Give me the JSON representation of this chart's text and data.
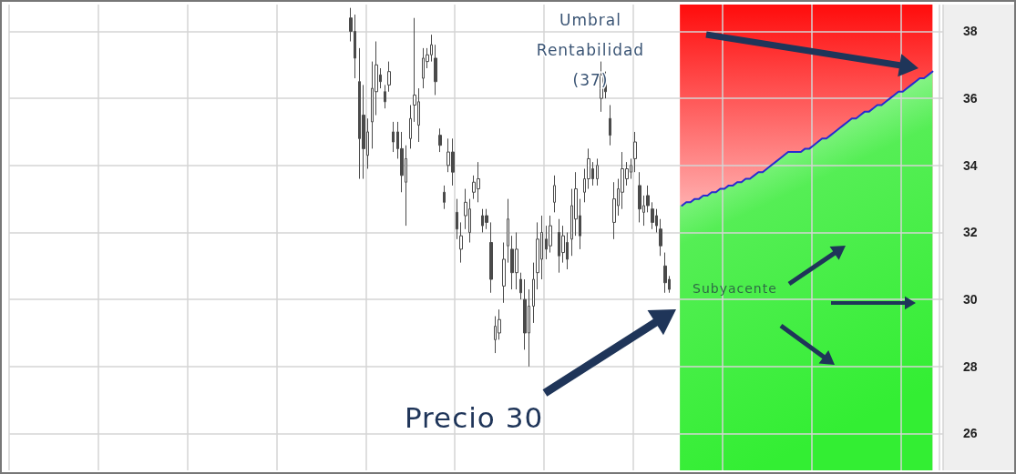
{
  "chart_data": {
    "type": "candlestick",
    "categories": [
      null,
      null,
      null,
      null,
      null,
      null,
      null,
      null,
      null,
      null,
      null,
      null,
      null,
      null,
      null,
      null,
      null,
      null,
      null,
      null,
      null,
      null,
      null,
      null,
      null,
      null,
      null,
      null,
      null,
      null,
      null,
      null,
      null,
      null,
      null,
      null,
      null,
      null,
      null,
      null,
      null,
      null,
      null,
      null,
      null,
      null,
      null,
      null,
      null,
      null,
      null,
      null,
      null,
      null,
      null,
      null,
      null,
      null,
      null,
      null,
      null,
      null,
      null,
      null,
      null,
      null,
      null,
      null,
      null,
      null,
      null,
      null,
      null,
      null,
      null,
      null,
      null,
      null,
      null,
      null,
      null,
      null,
      null,
      null,
      null,
      null,
      null,
      null,
      null,
      null,
      null,
      null,
      null,
      null,
      null,
      null,
      null,
      null,
      null,
      null,
      null,
      null,
      null,
      null,
      null,
      null,
      null,
      null,
      null,
      null,
      null,
      null,
      null,
      null,
      null,
      null,
      null,
      null,
      null,
      null,
      null,
      null,
      null,
      null,
      null,
      null,
      null,
      null,
      null,
      null,
      null,
      null,
      null,
      null,
      null,
      null,
      null,
      null,
      null,
      null,
      null,
      null,
      null,
      null,
      null,
      null,
      null,
      null,
      null,
      null,
      null,
      null,
      null,
      null,
      null,
      null,
      null,
      null,
      null,
      null,
      null,
      null,
      null,
      null,
      null,
      null,
      null,
      null,
      null,
      null,
      null,
      null,
      null,
      null,
      null,
      null,
      null,
      null,
      null,
      null,
      null,
      null,
      null,
      null,
      null,
      null,
      null,
      null,
      null,
      null,
      null,
      null,
      null,
      null,
      null,
      null,
      null,
      null,
      null,
      null,
      null,
      null,
      null,
      null,
      null,
      null,
      null,
      null,
      null,
      null,
      null,
      null,
      null,
      null,
      null,
      null,
      null,
      null,
      null,
      null
    ],
    "series": [
      {
        "color": "#4a4a4a",
        "ohlc": [
          null,
          null,
          null,
          null,
          null,
          null,
          null,
          null,
          null,
          null,
          null,
          null,
          null,
          null,
          null,
          null,
          null,
          null,
          null,
          null,
          null,
          null,
          null,
          null,
          null,
          null,
          null,
          null,
          null,
          null,
          null,
          null,
          null,
          null,
          null,
          null,
          null,
          null,
          null,
          null,
          null,
          null,
          null,
          null,
          null,
          null,
          null,
          null,
          null,
          null,
          null,
          null,
          null,
          null,
          null,
          null,
          null,
          null,
          null,
          null,
          null,
          null,
          null,
          null,
          null,
          null,
          null,
          null,
          null,
          null,
          null,
          null,
          null,
          null,
          null,
          null,
          null,
          null,
          null,
          null,
          [
            38.4,
            38.7,
            37.7,
            38.0
          ],
          [
            38.0,
            38.5,
            36.6,
            37.2
          ],
          [
            36.5,
            37.5,
            33.6,
            34.8
          ],
          [
            35.5,
            36.4,
            33.6,
            34.5
          ],
          [
            34.3,
            35.4,
            33.9,
            35.0
          ],
          [
            35.3,
            37.1,
            34.5,
            36.3
          ],
          [
            36.2,
            37.7,
            35.5,
            37.0
          ],
          [
            36.7,
            36.9,
            36.3,
            36.5
          ],
          [
            36.2,
            36.4,
            35.7,
            35.9
          ],
          [
            36.4,
            37.1,
            36.2,
            36.8
          ],
          [
            35.0,
            35.3,
            34.4,
            34.7
          ],
          [
            35.0,
            35.3,
            34.2,
            34.5
          ],
          [
            34.5,
            35.0,
            33.2,
            33.7
          ],
          [
            33.5,
            34.6,
            32.2,
            34.2
          ],
          [
            34.8,
            35.8,
            34.5,
            35.4
          ],
          [
            35.8,
            38.4,
            35.3,
            36.1
          ],
          [
            35.2,
            36.3,
            34.7,
            35.9
          ],
          [
            36.6,
            37.5,
            36.3,
            37.2
          ],
          [
            37.1,
            37.5,
            36.9,
            37.3
          ],
          [
            37.3,
            37.9,
            37.1,
            37.6
          ],
          [
            37.2,
            37.6,
            36.1,
            36.5
          ],
          [
            34.9,
            35.1,
            34.4,
            34.6
          ],
          [
            33.2,
            33.4,
            32.7,
            32.9
          ],
          [
            34.0,
            34.8,
            33.8,
            34.4
          ],
          [
            34.4,
            34.8,
            33.4,
            33.8
          ],
          [
            32.6,
            33.0,
            31.8,
            32.1
          ],
          [
            31.5,
            32.3,
            31.1,
            31.9
          ],
          [
            32.5,
            33.3,
            32.1,
            32.9
          ],
          [
            32.0,
            33.0,
            31.7,
            32.7
          ],
          [
            33.2,
            33.7,
            33.0,
            33.5
          ],
          [
            33.3,
            34.1,
            32.9,
            33.6
          ],
          [
            32.5,
            32.7,
            32.0,
            32.2
          ],
          [
            32.5,
            32.7,
            32.1,
            32.3
          ],
          [
            31.7,
            32.3,
            30.2,
            30.6
          ],
          [
            28.8,
            29.5,
            28.4,
            29.2
          ],
          [
            29.0,
            29.7,
            28.8,
            29.4
          ],
          [
            30.4,
            31.7,
            29.9,
            31.2
          ],
          [
            31.6,
            33.0,
            31.1,
            32.4
          ],
          [
            31.5,
            31.9,
            30.3,
            30.8
          ],
          [
            30.8,
            32.0,
            30.3,
            31.5
          ],
          [
            30.6,
            30.8,
            30.0,
            30.2
          ],
          [
            30.0,
            30.6,
            28.5,
            29.0
          ],
          [
            29.0,
            30.3,
            28.0,
            29.8
          ],
          [
            29.8,
            31.1,
            29.3,
            30.6
          ],
          [
            30.8,
            32.3,
            30.3,
            31.8
          ],
          [
            31.2,
            32.5,
            30.6,
            32.0
          ],
          [
            31.8,
            32.2,
            31.2,
            31.5
          ],
          [
            31.6,
            32.5,
            31.4,
            32.2
          ],
          [
            32.9,
            33.7,
            32.6,
            33.4
          ],
          [
            32.0,
            32.4,
            30.8,
            31.3
          ],
          [
            31.4,
            32.2,
            31.1,
            31.9
          ],
          [
            31.7,
            32.0,
            30.9,
            31.2
          ],
          [
            31.8,
            33.3,
            31.3,
            32.8
          ],
          [
            32.4,
            33.8,
            31.9,
            33.3
          ],
          [
            32.5,
            33.0,
            31.5,
            31.9
          ],
          [
            33.2,
            33.9,
            32.9,
            33.6
          ],
          [
            33.6,
            34.5,
            33.3,
            34.2
          ],
          [
            33.9,
            34.1,
            33.4,
            33.6
          ],
          [
            33.6,
            34.2,
            33.4,
            34.0
          ],
          [
            36.0,
            37.1,
            35.6,
            36.7
          ],
          [
            36.5,
            36.8,
            36.0,
            36.2
          ],
          [
            35.4,
            35.8,
            34.6,
            34.9
          ],
          [
            32.3,
            33.5,
            31.8,
            33.0
          ],
          [
            32.8,
            33.6,
            32.5,
            33.3
          ],
          [
            33.2,
            34.4,
            32.7,
            33.9
          ],
          [
            33.6,
            34.1,
            33.4,
            33.9
          ],
          [
            33.8,
            34.2,
            33.6,
            34.0
          ],
          [
            34.2,
            35.0,
            33.8,
            34.7
          ],
          [
            33.4,
            33.8,
            32.3,
            32.7
          ],
          [
            32.6,
            33.1,
            32.2,
            32.8
          ],
          [
            33.1,
            33.4,
            32.6,
            32.8
          ],
          [
            32.7,
            32.9,
            32.1,
            32.3
          ],
          [
            32.5,
            32.7,
            32.0,
            32.2
          ],
          [
            32.1,
            32.4,
            31.3,
            31.6
          ],
          [
            31.0,
            31.4,
            30.2,
            30.5
          ],
          [
            30.6,
            30.7,
            30.2,
            30.3
          ],
          null,
          null,
          null,
          null,
          null,
          null,
          null,
          null,
          null,
          null,
          null,
          null,
          null,
          null,
          null,
          null,
          null,
          null,
          null,
          null,
          null,
          null,
          null,
          null,
          null,
          null,
          null,
          null,
          null,
          null,
          null,
          null,
          null,
          null,
          null,
          null,
          null,
          null,
          null,
          null,
          null,
          null,
          null,
          null,
          null,
          null,
          null,
          null,
          null,
          null,
          null,
          null,
          null,
          null,
          null,
          null,
          null,
          null,
          null,
          null,
          null,
          null,
          null,
          null
        ]
      },
      {
        "type": "line",
        "color": "#2a2ad0",
        "values": [
          null,
          null,
          null,
          null,
          null,
          null,
          null,
          null,
          null,
          null,
          null,
          null,
          null,
          null,
          null,
          null,
          null,
          null,
          null,
          null,
          null,
          null,
          null,
          null,
          null,
          null,
          null,
          null,
          null,
          null,
          null,
          null,
          null,
          null,
          null,
          null,
          null,
          null,
          null,
          null,
          null,
          null,
          null,
          null,
          null,
          null,
          null,
          null,
          null,
          null,
          null,
          null,
          null,
          null,
          null,
          null,
          null,
          null,
          null,
          null,
          null,
          null,
          null,
          null,
          null,
          null,
          null,
          null,
          null,
          null,
          null,
          null,
          null,
          null,
          null,
          null,
          null,
          null,
          null,
          null,
          null,
          null,
          null,
          null,
          null,
          null,
          null,
          null,
          null,
          null,
          null,
          null,
          null,
          null,
          null,
          null,
          null,
          null,
          null,
          null,
          null,
          null,
          null,
          null,
          null,
          null,
          null,
          null,
          null,
          null,
          null,
          null,
          null,
          null,
          null,
          null,
          null,
          null,
          null,
          null,
          null,
          null,
          null,
          null,
          null,
          null,
          null,
          null,
          null,
          null,
          null,
          null,
          null,
          null,
          null,
          null,
          null,
          null,
          null,
          null,
          null,
          null,
          null,
          null,
          null,
          null,
          null,
          null,
          null,
          null,
          null,
          null,
          null,
          null,
          null,
          null,
          null,
          null,
          32.8,
          32.9,
          32.9,
          33.0,
          33.0,
          33.1,
          33.1,
          33.2,
          33.2,
          33.3,
          33.3,
          33.4,
          33.4,
          33.5,
          33.5,
          33.6,
          33.6,
          33.7,
          33.8,
          33.8,
          33.9,
          34.0,
          34.1,
          34.2,
          34.3,
          34.4,
          34.4,
          34.4,
          34.4,
          34.5,
          34.5,
          34.6,
          34.7,
          34.8,
          34.8,
          34.9,
          35.0,
          35.1,
          35.2,
          35.3,
          35.4,
          35.4,
          35.5,
          35.6,
          35.6,
          35.7,
          35.8,
          35.8,
          35.9,
          36.0,
          36.1,
          36.2,
          36.2,
          36.3,
          36.4,
          36.5,
          36.6,
          36.6,
          36.7,
          36.8,
          null,
          null
        ]
      }
    ],
    "ylim": [
      24.9,
      38.8
    ],
    "yticks": [
      26,
      28,
      30,
      32,
      34,
      36,
      38
    ],
    "grid": true,
    "tick_labels": "y",
    "marker": "none",
    "annotations": [
      "Umbral Rentabilidad (37)",
      "Subyacente",
      "Precio 30"
    ]
  }
}
